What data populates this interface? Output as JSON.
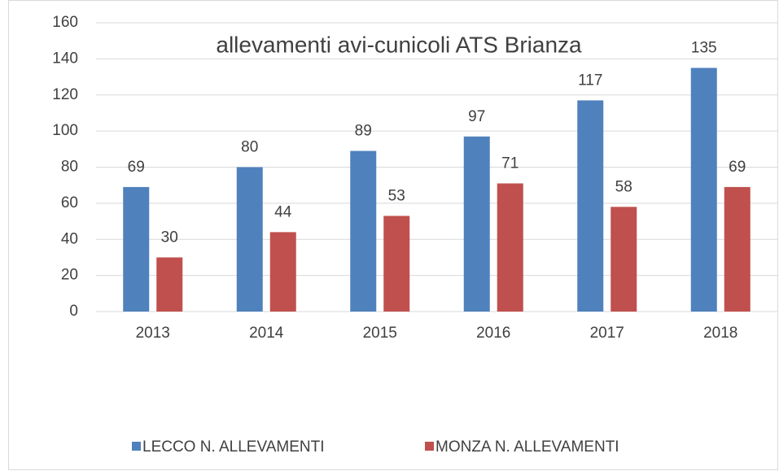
{
  "chart_data": {
    "type": "bar",
    "title": "allevamenti avi-cunicoli ATS Brianza",
    "categories": [
      "2013",
      "2014",
      "2015",
      "2016",
      "2017",
      "2018"
    ],
    "series": [
      {
        "name": "LECCO N. ALLEVAMENTI",
        "color": "#4f81bd",
        "values": [
          69,
          80,
          89,
          97,
          117,
          135
        ]
      },
      {
        "name": "MONZA N. ALLEVAMENTI",
        "color": "#c0504d",
        "values": [
          30,
          44,
          53,
          71,
          58,
          69
        ]
      }
    ],
    "ylim": [
      0,
      160
    ],
    "yticks": [
      0,
      20,
      40,
      60,
      80,
      100,
      120,
      140,
      160
    ],
    "grid": true,
    "legend": "bottom"
  }
}
